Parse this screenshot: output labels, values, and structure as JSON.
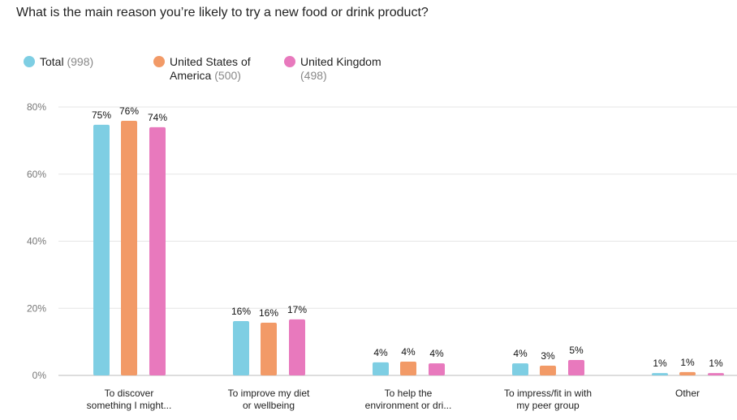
{
  "chart_data": {
    "type": "bar",
    "title": "What is the main reason you’re likely to try a new food or drink product?",
    "categories": [
      "To discover\nsomething I might...",
      "To improve my diet\nor wellbeing",
      "To help the\nenvironment or dri...",
      "To impress/fit in with\nmy peer group",
      "Other"
    ],
    "series": [
      {
        "name": "Total",
        "count_label": "(998)",
        "color": "#7ecee3",
        "values": [
          74.7,
          16.2,
          3.9,
          3.6,
          0.7
        ],
        "value_labels": [
          "75%",
          "16%",
          "4%",
          "4%",
          "1%"
        ]
      },
      {
        "name": "United States of America",
        "count_label": "(500)",
        "color": "#f29a67",
        "values": [
          75.9,
          15.7,
          4.1,
          2.9,
          1.0
        ],
        "value_labels": [
          "76%",
          "16%",
          "4%",
          "3%",
          "1%"
        ]
      },
      {
        "name": "United Kingdom",
        "count_label": "(498)",
        "color": "#e879bd",
        "values": [
          74.0,
          16.7,
          3.6,
          4.6,
          0.7
        ],
        "value_labels": [
          "74%",
          "17%",
          "4%",
          "5%",
          "1%"
        ]
      }
    ],
    "ylim": [
      0,
      80
    ],
    "yticks": [
      {
        "value": 0,
        "label": "0%"
      },
      {
        "value": 20,
        "label": "20%"
      },
      {
        "value": 40,
        "label": "40%"
      },
      {
        "value": 60,
        "label": "60%"
      },
      {
        "value": 80,
        "label": "80%"
      }
    ],
    "grid": true
  }
}
